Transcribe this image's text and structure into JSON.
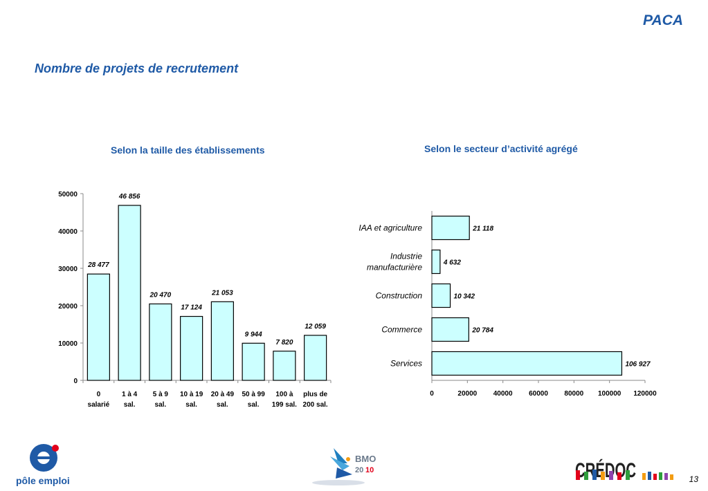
{
  "header": {
    "region": "PACA",
    "title": "Nombre de projets de recrutement"
  },
  "chart_data": [
    {
      "type": "bar",
      "title": "Selon la taille des établissements",
      "categories": [
        [
          "0",
          "salarié"
        ],
        [
          "1 à 4",
          "sal."
        ],
        [
          "5 à 9",
          "sal."
        ],
        [
          "10 à 19",
          "sal."
        ],
        [
          "20 à 49",
          "sal."
        ],
        [
          "50 à 99",
          "sal."
        ],
        [
          "100 à",
          "199 sal."
        ],
        [
          "plus de",
          "200 sal."
        ]
      ],
      "values": [
        28477,
        46856,
        20470,
        17124,
        21053,
        9944,
        7820,
        12059
      ],
      "value_labels": [
        "28 477",
        "46 856",
        "20 470",
        "17 124",
        "21 053",
        "9 944",
        "7 820",
        "12 059"
      ],
      "ylim": [
        0,
        50000
      ],
      "yticks": [
        "0",
        "10000",
        "20000",
        "30000",
        "40000",
        "50000"
      ],
      "colors": {
        "bar_fill": "#ccffff",
        "bar_stroke": "#000000",
        "title": "#1f5aa6"
      }
    },
    {
      "type": "bar",
      "orientation": "horizontal",
      "title": "Selon le secteur d’activité agrégé",
      "categories": [
        [
          "IAA et agriculture"
        ],
        [
          "Industrie",
          "manufacturière"
        ],
        [
          "Construction"
        ],
        [
          "Commerce"
        ],
        [
          "Services"
        ]
      ],
      "values": [
        21118,
        4632,
        10342,
        20784,
        106927
      ],
      "value_labels": [
        "21 118",
        "4 632",
        "10 342",
        "20 784",
        "106 927"
      ],
      "xlim": [
        0,
        120000
      ],
      "xticks": [
        "0",
        "20000",
        "40000",
        "60000",
        "80000",
        "100000",
        "120000"
      ],
      "colors": {
        "bar_fill": "#ccffff",
        "bar_stroke": "#000000",
        "title": "#1f5aa6"
      }
    }
  ],
  "footer": {
    "logo_left": "pôle emploi",
    "logo_center": [
      "BMO",
      "20",
      "10"
    ],
    "logo_right": "CRÉDOC",
    "page_number": "13"
  }
}
